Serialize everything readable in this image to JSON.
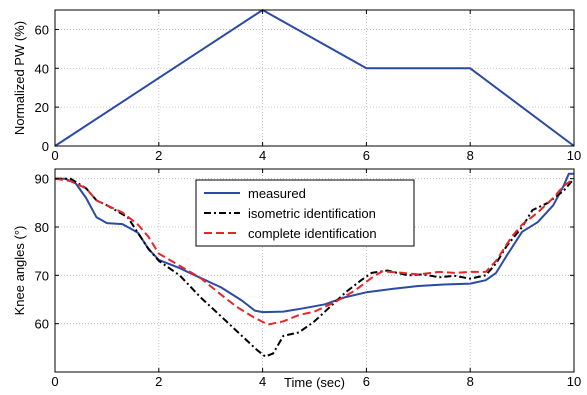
{
  "chart_data": [
    {
      "type": "line",
      "title": "",
      "xlabel": "",
      "ylabel": "Normalized PW (%)",
      "xlim": [
        0,
        10
      ],
      "ylim": [
        0,
        70
      ],
      "xticks": [
        0,
        2,
        4,
        6,
        8,
        10
      ],
      "yticks": [
        0,
        20,
        40,
        60
      ],
      "grid": true,
      "series": [
        {
          "color": "#2b4aa6",
          "style": "solid",
          "points": [
            [
              0,
              0
            ],
            [
              4,
              70
            ],
            [
              6,
              40
            ],
            [
              8,
              40
            ],
            [
              10,
              0
            ]
          ]
        }
      ]
    },
    {
      "type": "line",
      "title": "",
      "xlabel": "Time (sec)",
      "ylabel": "Knee angles (°)",
      "xlim": [
        0,
        10
      ],
      "ylim": [
        50,
        92
      ],
      "xticks": [
        0,
        2,
        4,
        6,
        8,
        10
      ],
      "yticks": [
        60,
        70,
        80,
        90
      ],
      "grid": true,
      "legend_position": "top-center",
      "series": [
        {
          "name": "measured",
          "color": "#2b4aa6",
          "style": "solid",
          "points": [
            [
              0,
              90
            ],
            [
              0.2,
              90
            ],
            [
              0.4,
              89
            ],
            [
              0.6,
              86
            ],
            [
              0.8,
              82
            ],
            [
              1.0,
              80.8
            ],
            [
              1.3,
              80.6
            ],
            [
              1.6,
              78.8
            ],
            [
              1.8,
              75.5
            ],
            [
              2.0,
              73.2
            ],
            [
              2.4,
              71.5
            ],
            [
              2.8,
              69.5
            ],
            [
              3.2,
              67.5
            ],
            [
              3.6,
              64.8
            ],
            [
              3.85,
              62.7
            ],
            [
              4.0,
              62.4
            ],
            [
              4.4,
              62.5
            ],
            [
              4.8,
              63.2
            ],
            [
              5.2,
              64.0
            ],
            [
              5.6,
              65.5
            ],
            [
              6.0,
              66.5
            ],
            [
              6.5,
              67.2
            ],
            [
              7.0,
              67.8
            ],
            [
              7.5,
              68.1
            ],
            [
              8.0,
              68.3
            ],
            [
              8.3,
              69.0
            ],
            [
              8.5,
              70.5
            ],
            [
              8.7,
              74.0
            ],
            [
              9.0,
              79.0
            ],
            [
              9.3,
              81.0
            ],
            [
              9.6,
              84.5
            ],
            [
              9.8,
              88.5
            ],
            [
              9.9,
              91.0
            ],
            [
              10.0,
              91.0
            ]
          ]
        },
        {
          "name": "isometric identification",
          "color": "#000000",
          "style": "dashdot",
          "points": [
            [
              0,
              90
            ],
            [
              0.3,
              90
            ],
            [
              0.6,
              88
            ],
            [
              0.8,
              85.5
            ],
            [
              1.0,
              84.5
            ],
            [
              1.4,
              82.0
            ],
            [
              1.8,
              75.5
            ],
            [
              2.0,
              73.0
            ],
            [
              2.4,
              70.0
            ],
            [
              2.8,
              65.5
            ],
            [
              3.2,
              61.5
            ],
            [
              3.6,
              57.5
            ],
            [
              3.9,
              54.5
            ],
            [
              4.05,
              53.2
            ],
            [
              4.2,
              53.8
            ],
            [
              4.4,
              57.5
            ],
            [
              4.7,
              58.2
            ],
            [
              5.0,
              60.5
            ],
            [
              5.3,
              63.5
            ],
            [
              5.6,
              66.5
            ],
            [
              5.9,
              69.0
            ],
            [
              6.1,
              70.5
            ],
            [
              6.4,
              71.0
            ],
            [
              6.8,
              70.0
            ],
            [
              7.1,
              70.2
            ],
            [
              7.4,
              69.6
            ],
            [
              7.7,
              69.9
            ],
            [
              8.0,
              69.3
            ],
            [
              8.3,
              70.0
            ],
            [
              8.5,
              72.5
            ],
            [
              8.7,
              76.0
            ],
            [
              9.0,
              80.0
            ],
            [
              9.2,
              83.5
            ],
            [
              9.5,
              85.0
            ],
            [
              9.8,
              87.5
            ],
            [
              10.0,
              90.0
            ]
          ]
        },
        {
          "name": "complete identification",
          "color": "#e8262a",
          "style": "dashed",
          "points": [
            [
              0,
              90
            ],
            [
              0.3,
              89.5
            ],
            [
              0.6,
              88
            ],
            [
              0.8,
              85.5
            ],
            [
              1.0,
              84.5
            ],
            [
              1.3,
              83.0
            ],
            [
              1.6,
              80.5
            ],
            [
              1.8,
              78.0
            ],
            [
              2.0,
              74.5
            ],
            [
              2.4,
              72.0
            ],
            [
              2.8,
              69.5
            ],
            [
              3.2,
              66.0
            ],
            [
              3.5,
              63.5
            ],
            [
              3.8,
              61.5
            ],
            [
              4.1,
              59.8
            ],
            [
              4.4,
              60.5
            ],
            [
              4.7,
              61.8
            ],
            [
              5.0,
              62.5
            ],
            [
              5.4,
              64.5
            ],
            [
              5.8,
              67.0
            ],
            [
              6.1,
              69.5
            ],
            [
              6.3,
              70.8
            ],
            [
              6.6,
              70.6
            ],
            [
              7.0,
              70.2
            ],
            [
              7.4,
              70.7
            ],
            [
              7.7,
              70.5
            ],
            [
              8.0,
              70.7
            ],
            [
              8.3,
              70.7
            ],
            [
              8.5,
              73.0
            ],
            [
              8.8,
              78.0
            ],
            [
              9.0,
              80.5
            ],
            [
              9.3,
              83.0
            ],
            [
              9.6,
              86.0
            ],
            [
              9.8,
              88.5
            ],
            [
              10.0,
              90.0
            ]
          ]
        }
      ]
    }
  ]
}
